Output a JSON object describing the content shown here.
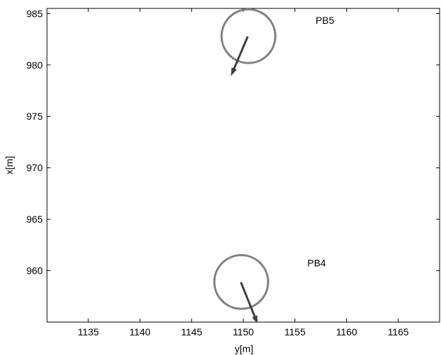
{
  "chart_data": {
    "type": "scatter",
    "title": "",
    "xlabel": "y[m]",
    "ylabel": "x[m]",
    "xlim": [
      1131,
      1169
    ],
    "ylim": [
      955,
      985.5
    ],
    "xticks": [
      1135,
      1140,
      1145,
      1150,
      1155,
      1160,
      1165
    ],
    "yticks": [
      960,
      965,
      970,
      975,
      980,
      985
    ],
    "grid": false,
    "colors": {
      "circle": "#808080",
      "arrow": "#404040",
      "axis": "#000000"
    },
    "items": [
      {
        "label": "PB5",
        "center": [
          1150.5,
          982.8
        ],
        "radius": 2.6,
        "arrow_from": [
          1150.4,
          982.7
        ],
        "arrow_to": [
          1148.8,
          978.9
        ],
        "label_at": [
          1157.0,
          984.0
        ]
      },
      {
        "label": "PB4",
        "center": [
          1149.8,
          958.9
        ],
        "radius": 2.6,
        "arrow_from": [
          1149.8,
          958.8
        ],
        "arrow_to": [
          1151.4,
          954.8
        ],
        "label_at": [
          1156.2,
          960.4
        ]
      }
    ]
  }
}
